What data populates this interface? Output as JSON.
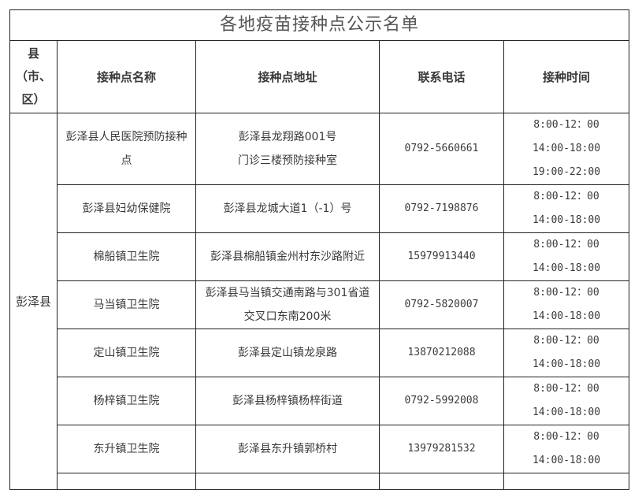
{
  "title": "各地疫苗接种点公示名单",
  "headers": {
    "county": [
      "县",
      "（市、",
      "区）"
    ],
    "name": "接种点名称",
    "address": "接种点地址",
    "phone": "联系电话",
    "time": "接种时间"
  },
  "county": "彭泽县",
  "rows": [
    {
      "name": "彭泽县人民医院预防接种点",
      "address": [
        "彭泽县龙翔路001号",
        "门诊三楼预防接种室"
      ],
      "phone": "0792-5660661",
      "times": [
        "8:00-12：00",
        "14:00-18:00",
        "19:00-22:00"
      ]
    },
    {
      "name": "彭泽县妇幼保健院",
      "address": [
        "彭泽县龙城大道1（-1）号"
      ],
      "phone": "0792-7198876",
      "times": [
        "8:00-12：00",
        "14:00-18:00"
      ]
    },
    {
      "name": "棉船镇卫生院",
      "address": [
        "彭泽县棉船镇金州村东沙路附近"
      ],
      "phone": "15979913440",
      "times": [
        "8:00-12：00",
        "14:00-18:00"
      ]
    },
    {
      "name": "马当镇卫生院",
      "address": [
        "彭泽县马当镇交通南路与301省道",
        "交叉口东南200米"
      ],
      "phone": "0792-5820007",
      "times": [
        "8:00-12：00",
        "14:00-18:00"
      ]
    },
    {
      "name": "定山镇卫生院",
      "address": [
        "彭泽县定山镇龙泉路"
      ],
      "phone": "13870212088",
      "times": [
        "8:00-12：00",
        "14:00-18:00"
      ]
    },
    {
      "name": "杨梓镇卫生院",
      "address": [
        "彭泽县杨梓镇杨梓街道"
      ],
      "phone": "0792-5992008",
      "times": [
        "8:00-12：00",
        "14:00-18:00"
      ]
    },
    {
      "name": "东升镇卫生院",
      "address": [
        "彭泽县东升镇郭桥村"
      ],
      "phone": "13979281532",
      "times": [
        "8:00-12：00",
        "14:00-18:00"
      ]
    }
  ]
}
